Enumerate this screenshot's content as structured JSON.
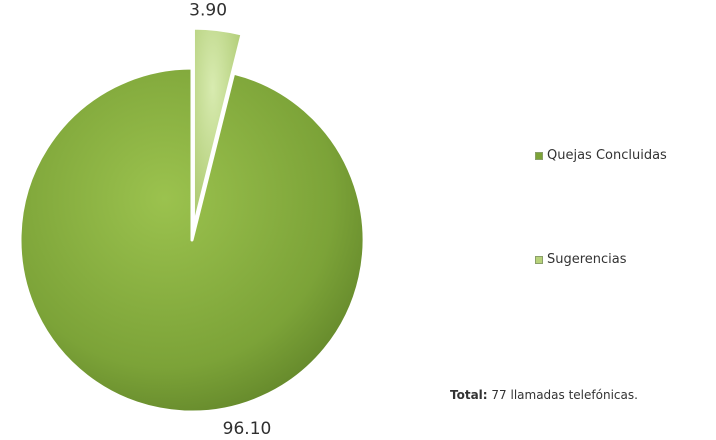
{
  "chart_data": {
    "type": "pie",
    "categories": [
      "Quejas Concluidas",
      "Sugerencias"
    ],
    "values": [
      96.1,
      3.9
    ],
    "data_labels": [
      "96.10",
      "3.90"
    ],
    "colors": [
      "#7ca338",
      "#b7d27a"
    ],
    "exploded": [
      false,
      true
    ],
    "legend_position": "right"
  },
  "legend": {
    "items": [
      {
        "label": "Quejas Concluidas",
        "color": "#7ca338"
      },
      {
        "label": "Sugerencias",
        "color": "#b7d27a"
      }
    ]
  },
  "note": {
    "label": "Total:",
    "text": " 77 llamadas telefónicas."
  }
}
